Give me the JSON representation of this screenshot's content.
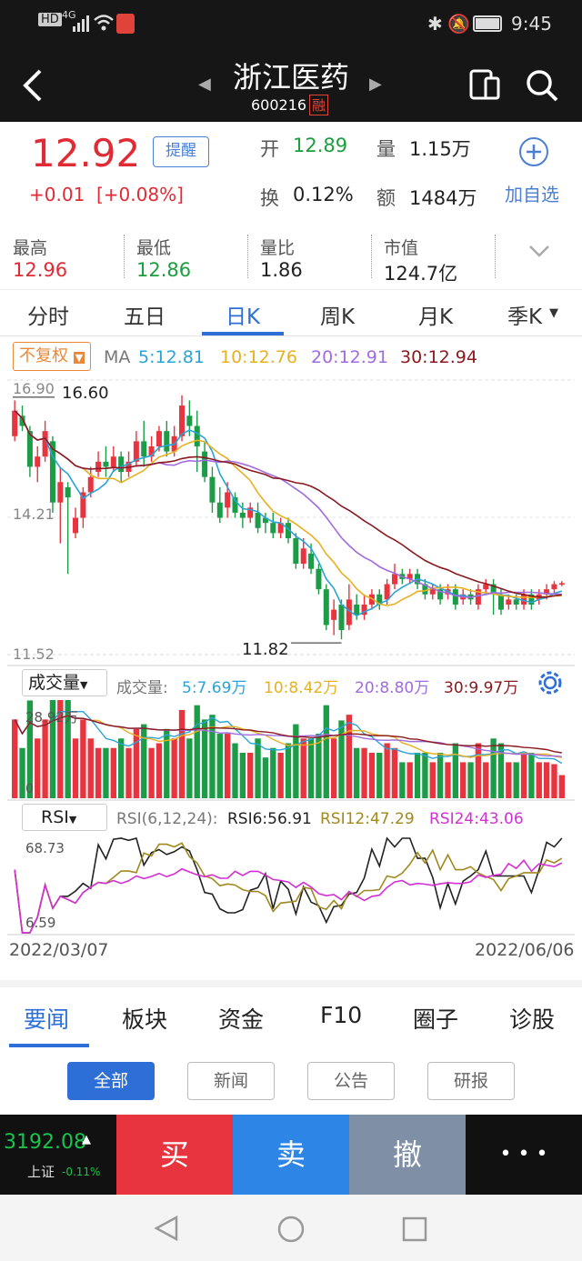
{
  "status": {
    "time": "9:45",
    "network": "4G",
    "hd": "HD"
  },
  "header": {
    "title": "浙江医药",
    "code": "600216",
    "badge": "融"
  },
  "quote": {
    "price": "12.92",
    "change": "+0.01",
    "change_pct": "[+0.08%]",
    "alert_label": "提醒",
    "open_label": "开",
    "open": "12.89",
    "volume_label": "量",
    "volume": "1.15万",
    "turnover_label": "换",
    "turnover": "0.12%",
    "amount_label": "额",
    "amount": "1484万",
    "watch_label": "加自选"
  },
  "stats": [
    {
      "label": "最高",
      "value": "12.96",
      "color": "#e02b35"
    },
    {
      "label": "最低",
      "value": "12.86",
      "color": "#1b9e3e"
    },
    {
      "label": "量比",
      "value": "1.86",
      "color": "#222222"
    },
    {
      "label": "市值",
      "value": "124.7亿",
      "color": "#222222"
    }
  ],
  "ktabs": [
    "分时",
    "五日",
    "日K",
    "周K",
    "月K",
    "季K"
  ],
  "ktabs_active": 2,
  "ma_bar": {
    "adjust": "不复权",
    "ma_label": "MA",
    "ma5": "5:12.81",
    "ma10": "10:12.76",
    "ma20": "20:12.91",
    "ma30": "30:12.94"
  },
  "price_axis": {
    "top": "16.90",
    "mid": "14.21",
    "bottom": "11.52",
    "high_label": "16.60",
    "low_label": "11.82"
  },
  "vol_bar": {
    "selector": "成交量",
    "label": "成交量:",
    "v5": "5:7.69万",
    "v10": "10:8.42万",
    "v20": "20:8.80万",
    "v30": "30:9.97万"
  },
  "vol_axis": {
    "top": "28.92万",
    "bottom": "0"
  },
  "rsi_bar": {
    "selector": "RSI",
    "params": "RSI(6,12,24):",
    "rsi6": "RSI6:56.91",
    "rsi12": "RSI12:47.29",
    "rsi24": "RSI24:43.06"
  },
  "rsi_axis": {
    "top": "68.73",
    "bottom": "6.59"
  },
  "dates": {
    "start": "2022/03/07",
    "end": "2022/06/06"
  },
  "bottom_tabs": [
    "要闻",
    "板块",
    "资金",
    "F10",
    "圈子",
    "诊股"
  ],
  "filters": [
    "全部",
    "新闻",
    "公告",
    "研报"
  ],
  "index": {
    "value": "3192.08",
    "name": "上证",
    "pct": "-0.11%"
  },
  "trade": {
    "buy": "买",
    "sell": "卖",
    "cancel": "撤",
    "more": "• • •"
  },
  "chart_data": {
    "type": "candlestick",
    "title": "浙江医药 600216 日K",
    "x_range": [
      "2022/03/07",
      "2022/06/06"
    ],
    "ylim": [
      11.52,
      16.9
    ],
    "high_marker": 16.6,
    "low_marker": 11.82,
    "candles": [
      [
        15.8,
        16.3,
        16.5,
        15.7
      ],
      [
        16.2,
        16.0,
        16.4,
        15.9
      ],
      [
        15.9,
        15.2,
        16.0,
        15.0
      ],
      [
        15.2,
        15.4,
        15.6,
        14.9
      ],
      [
        15.4,
        15.9,
        16.1,
        15.3
      ],
      [
        15.7,
        14.5,
        15.8,
        14.3
      ],
      [
        14.5,
        14.9,
        15.2,
        13.7
      ],
      [
        14.8,
        14.6,
        14.9,
        13.1
      ],
      [
        13.9,
        14.2,
        14.4,
        13.8
      ],
      [
        14.2,
        14.7,
        14.8,
        14.0
      ],
      [
        14.7,
        15.0,
        15.2,
        14.6
      ],
      [
        15.1,
        15.3,
        15.5,
        15.0
      ],
      [
        15.3,
        15.2,
        15.6,
        15.0
      ],
      [
        15.2,
        15.4,
        15.6,
        15.1
      ],
      [
        15.4,
        15.1,
        15.5,
        14.9
      ],
      [
        15.1,
        15.3,
        15.5,
        15.0
      ],
      [
        15.3,
        15.7,
        15.9,
        15.2
      ],
      [
        15.7,
        15.4,
        16.1,
        15.2
      ],
      [
        15.4,
        15.6,
        15.8,
        15.3
      ],
      [
        15.6,
        15.9,
        16.0,
        15.5
      ],
      [
        15.9,
        15.5,
        16.1,
        15.4
      ],
      [
        15.5,
        15.8,
        16.0,
        15.4
      ],
      [
        15.8,
        16.4,
        16.6,
        15.7
      ],
      [
        16.2,
        16.0,
        16.5,
        15.8
      ],
      [
        16.0,
        15.6,
        16.3,
        15.1
      ],
      [
        15.5,
        15.0,
        15.7,
        14.9
      ],
      [
        15.0,
        14.5,
        15.2,
        14.3
      ],
      [
        14.5,
        14.2,
        14.8,
        14.1
      ],
      [
        14.4,
        14.7,
        14.9,
        14.2
      ],
      [
        14.6,
        14.3,
        14.7,
        14.2
      ],
      [
        14.3,
        14.2,
        14.5,
        14.0
      ],
      [
        14.2,
        14.4,
        14.5,
        14.1
      ],
      [
        14.3,
        14.0,
        14.5,
        13.9
      ],
      [
        14.2,
        14.1,
        14.3,
        13.9
      ],
      [
        14.1,
        13.9,
        14.3,
        13.8
      ],
      [
        13.9,
        14.1,
        14.2,
        13.8
      ],
      [
        14.1,
        13.8,
        14.2,
        13.7
      ],
      [
        13.8,
        13.3,
        13.9,
        13.2
      ],
      [
        13.3,
        13.6,
        13.8,
        13.2
      ],
      [
        13.5,
        13.2,
        13.7,
        13.1
      ],
      [
        13.2,
        12.8,
        13.3,
        12.7
      ],
      [
        12.8,
        12.1,
        12.9,
        12.0
      ],
      [
        12.2,
        12.4,
        12.6,
        11.9
      ],
      [
        12.5,
        12.0,
        12.6,
        11.82
      ],
      [
        12.1,
        12.6,
        12.9,
        12.0
      ],
      [
        12.5,
        12.3,
        12.7,
        12.2
      ],
      [
        12.3,
        12.5,
        12.7,
        12.2
      ],
      [
        12.5,
        12.7,
        12.8,
        12.4
      ],
      [
        12.7,
        12.5,
        12.8,
        12.4
      ],
      [
        12.6,
        12.9,
        13.0,
        12.5
      ],
      [
        12.9,
        13.1,
        13.3,
        12.8
      ],
      [
        13.1,
        13.0,
        13.2,
        12.9
      ],
      [
        13.0,
        13.1,
        13.2,
        12.9
      ],
      [
        13.1,
        12.9,
        13.2,
        12.8
      ],
      [
        12.9,
        12.7,
        13.0,
        12.6
      ],
      [
        12.7,
        12.8,
        12.9,
        12.6
      ],
      [
        12.8,
        12.6,
        12.9,
        12.5
      ],
      [
        12.7,
        12.8,
        12.9,
        12.6
      ],
      [
        12.8,
        12.5,
        12.9,
        12.4
      ],
      [
        12.6,
        12.7,
        12.8,
        12.5
      ],
      [
        12.7,
        12.6,
        12.8,
        12.5
      ],
      [
        12.5,
        12.8,
        12.9,
        12.4
      ],
      [
        12.8,
        12.9,
        13.0,
        12.7
      ],
      [
        12.9,
        12.7,
        13.0,
        12.3
      ],
      [
        12.7,
        12.4,
        12.8,
        12.3
      ],
      [
        12.5,
        12.6,
        12.7,
        12.4
      ],
      [
        12.6,
        12.5,
        12.7,
        12.4
      ],
      [
        12.5,
        12.7,
        12.8,
        12.4
      ],
      [
        12.7,
        12.5,
        12.8,
        12.4
      ],
      [
        12.6,
        12.7,
        12.8,
        12.5
      ],
      [
        12.7,
        12.8,
        12.9,
        12.6
      ],
      [
        12.8,
        12.9,
        12.96,
        12.7
      ],
      [
        12.89,
        12.92,
        12.96,
        12.86
      ]
    ],
    "volume_max": 28.92,
    "rsi_range": [
      6.59,
      68.73
    ]
  }
}
